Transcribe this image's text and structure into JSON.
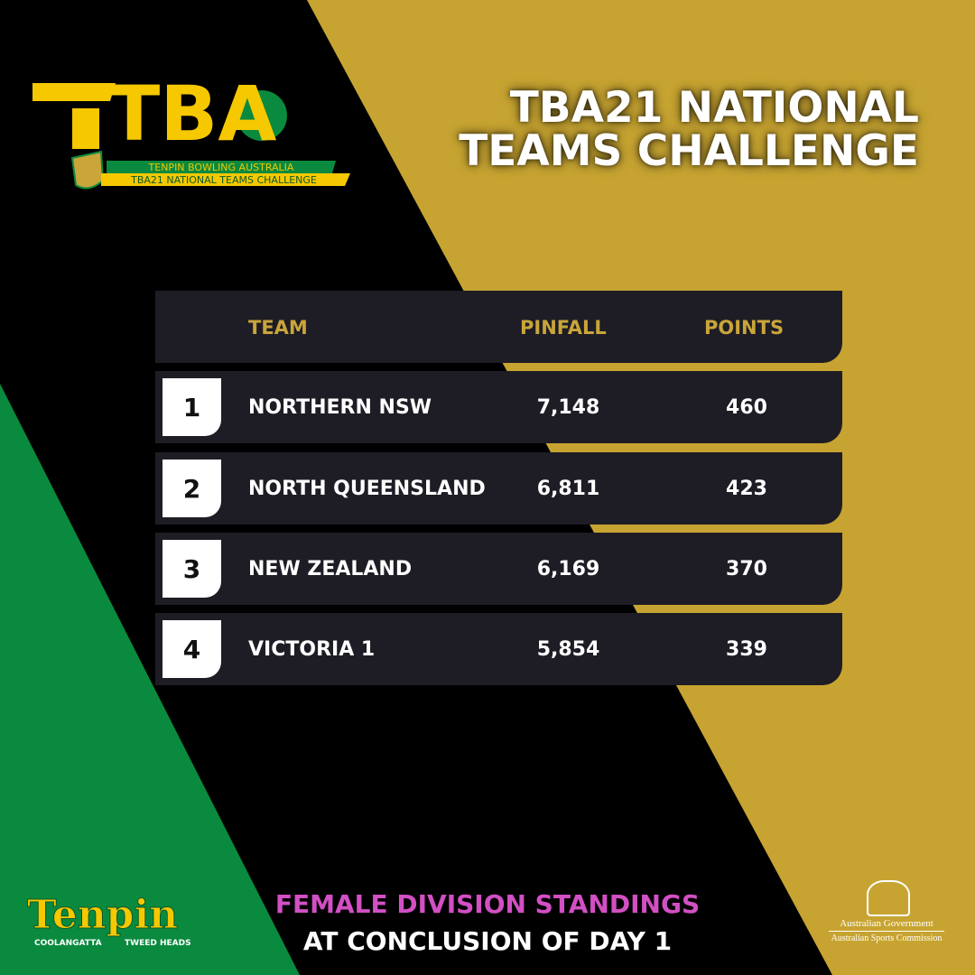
{
  "logo": {
    "mark": "TBA",
    "line1": "TENPIN BOWLING AUSTRALIA",
    "line2": "TBA21 NATIONAL TEAMS CHALLENGE"
  },
  "title": [
    "TBA21 NATIONAL",
    "TEAMS CHALLENGE"
  ],
  "table": {
    "header": [
      "TEAM",
      "PINFALL",
      "POINTS"
    ],
    "rows": [
      [
        "1",
        "NORTHERN NSW",
        "7,148",
        "460"
      ],
      [
        "2",
        "NORTH QUEENSLAND",
        "6,811",
        "423"
      ],
      [
        "3",
        "NEW ZEALAND",
        "6,169",
        "370"
      ],
      [
        "4",
        "VICTORIA 1",
        "5,854",
        "339"
      ]
    ]
  },
  "footer": {
    "line1": "FEMALE DIVISION STANDINGS",
    "line2": "AT CONCLUSION OF DAY 1"
  },
  "sponsor": {
    "name": "Tenpin",
    "left": "COOLANGATTA",
    "right": "TWEED HEADS"
  },
  "government": {
    "line1": "Australian Government",
    "line2": "Australian Sports Commission"
  }
}
